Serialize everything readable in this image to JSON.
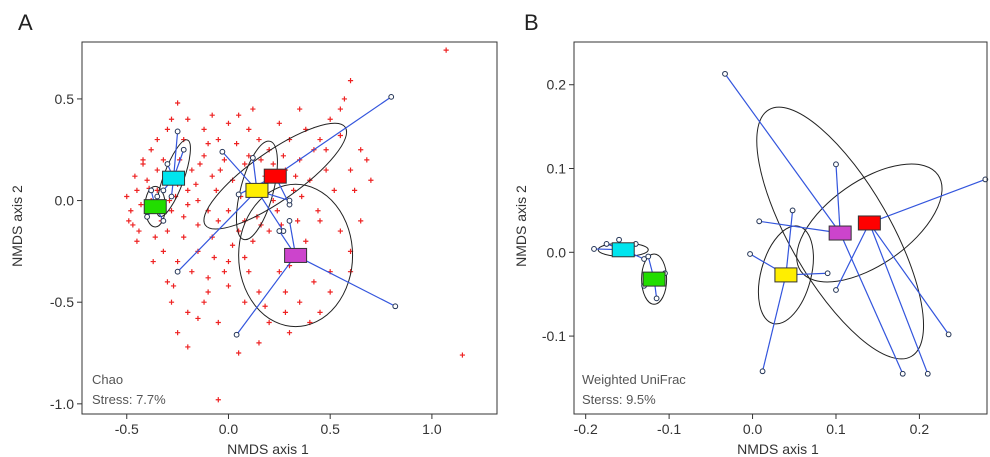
{
  "chart_data": [
    {
      "type": "scatter",
      "panel_label": "A",
      "xlabel": "NMDS axis 1",
      "ylabel": "NMDS axis 2",
      "xlim": [
        -0.72,
        1.32
      ],
      "ylim": [
        -1.05,
        0.78
      ],
      "x_ticks": [
        -0.5,
        0.0,
        0.5,
        1.0
      ],
      "x_tick_labels": [
        "-0.5",
        "0.0",
        "0.5",
        "1.0"
      ],
      "y_ticks": [
        0.5,
        0.0,
        -0.5,
        -1.0
      ],
      "y_tick_labels": [
        "0.5",
        "0.0",
        "-0.5",
        "-1.0"
      ],
      "annotation_lines": [
        "Chao",
        "Stress: 7.7%"
      ],
      "grid": false,
      "background_points": [
        [
          1.07,
          0.74
        ],
        [
          1.15,
          -0.76
        ],
        [
          0.6,
          0.59
        ],
        [
          0.57,
          0.5
        ],
        [
          0.5,
          0.4
        ],
        [
          0.45,
          0.3
        ],
        [
          0.55,
          0.32
        ],
        [
          0.65,
          0.25
        ],
        [
          0.7,
          0.1
        ],
        [
          0.6,
          0.15
        ],
        [
          0.48,
          0.15
        ],
        [
          0.52,
          0.05
        ],
        [
          0.45,
          -0.1
        ],
        [
          0.55,
          -0.15
        ],
        [
          0.6,
          -0.25
        ],
        [
          0.5,
          -0.35
        ],
        [
          0.42,
          -0.4
        ],
        [
          0.35,
          -0.5
        ],
        [
          0.28,
          -0.55
        ],
        [
          0.2,
          -0.6
        ],
        [
          0.15,
          -0.45
        ],
        [
          0.08,
          -0.5
        ],
        [
          -0.05,
          -0.6
        ],
        [
          -0.1,
          -0.45
        ],
        [
          -0.2,
          -0.55
        ],
        [
          -0.28,
          -0.5
        ],
        [
          -0.3,
          -0.4
        ],
        [
          -0.25,
          -0.3
        ],
        [
          -0.15,
          -0.25
        ],
        [
          0.0,
          -0.3
        ],
        [
          0.1,
          -0.35
        ],
        [
          0.25,
          -0.35
        ],
        [
          0.3,
          -0.25
        ],
        [
          0.38,
          -0.2
        ],
        [
          0.2,
          -0.15
        ],
        [
          0.05,
          -0.15
        ],
        [
          -0.05,
          -0.1
        ],
        [
          -0.1,
          -0.05
        ],
        [
          -0.15,
          0.0
        ],
        [
          -0.2,
          0.05
        ],
        [
          -0.25,
          0.08
        ],
        [
          -0.3,
          0.12
        ],
        [
          -0.35,
          0.15
        ],
        [
          -0.4,
          0.1
        ],
        [
          -0.45,
          0.05
        ],
        [
          -0.48,
          -0.05
        ],
        [
          -0.47,
          -0.12
        ],
        [
          -0.44,
          -0.15
        ],
        [
          -0.4,
          -0.08
        ],
        [
          -0.38,
          0.0
        ],
        [
          -0.35,
          0.05
        ],
        [
          -0.33,
          -0.1
        ],
        [
          -0.3,
          -0.15
        ],
        [
          -0.28,
          -0.05
        ],
        [
          -0.26,
          0.02
        ],
        [
          -0.24,
          0.2
        ],
        [
          -0.22,
          0.3
        ],
        [
          -0.2,
          0.4
        ],
        [
          -0.25,
          0.48
        ],
        [
          -0.3,
          0.35
        ],
        [
          -0.35,
          0.3
        ],
        [
          -0.38,
          0.25
        ],
        [
          -0.42,
          0.2
        ],
        [
          -0.18,
          0.15
        ],
        [
          -0.12,
          0.22
        ],
        [
          -0.05,
          0.3
        ],
        [
          0.0,
          0.38
        ],
        [
          0.05,
          0.42
        ],
        [
          0.1,
          0.35
        ],
        [
          0.15,
          0.3
        ],
        [
          0.2,
          0.25
        ],
        [
          0.25,
          0.38
        ],
        [
          0.3,
          0.3
        ],
        [
          0.35,
          0.2
        ],
        [
          0.4,
          0.1
        ],
        [
          0.32,
          0.05
        ],
        [
          0.22,
          0.0
        ],
        [
          0.12,
          0.05
        ],
        [
          0.02,
          0.1
        ],
        [
          -0.08,
          0.12
        ],
        [
          -0.12,
          0.35
        ],
        [
          -0.02,
          0.2
        ],
        [
          0.08,
          0.18
        ],
        [
          0.18,
          0.12
        ],
        [
          0.28,
          0.15
        ],
        [
          0.38,
          0.35
        ],
        [
          0.42,
          0.25
        ],
        [
          0.48,
          0.25
        ],
        [
          -0.15,
          -0.12
        ],
        [
          -0.08,
          -0.18
        ],
        [
          0.02,
          -0.22
        ],
        [
          0.12,
          -0.2
        ],
        [
          -0.22,
          -0.18
        ],
        [
          -0.32,
          -0.25
        ],
        [
          -0.18,
          -0.35
        ],
        [
          -0.1,
          -0.38
        ],
        [
          0.0,
          -0.42
        ],
        [
          -0.25,
          -0.65
        ],
        [
          -0.2,
          -0.72
        ],
        [
          -0.15,
          -0.58
        ],
        [
          0.05,
          -0.75
        ],
        [
          0.15,
          -0.7
        ],
        [
          -0.05,
          -0.98
        ],
        [
          0.3,
          -0.65
        ],
        [
          0.4,
          -0.6
        ],
        [
          0.45,
          -0.55
        ],
        [
          -0.43,
          -0.02
        ],
        [
          -0.46,
          0.12
        ],
        [
          -0.5,
          0.02
        ],
        [
          -0.42,
          0.18
        ],
        [
          -0.36,
          -0.18
        ],
        [
          -0.22,
          -0.08
        ],
        [
          -0.16,
          0.08
        ],
        [
          -0.06,
          0.05
        ],
        [
          0.06,
          0.02
        ],
        [
          0.14,
          -0.08
        ],
        [
          0.24,
          -0.05
        ],
        [
          0.34,
          -0.1
        ],
        [
          0.44,
          -0.05
        ],
        [
          0.62,
          0.05
        ],
        [
          0.68,
          0.2
        ],
        [
          0.55,
          0.45
        ],
        [
          0.35,
          0.45
        ],
        [
          0.12,
          0.45
        ],
        [
          -0.08,
          0.42
        ],
        [
          -0.28,
          0.4
        ],
        [
          -0.32,
          0.2
        ],
        [
          -0.45,
          -0.2
        ],
        [
          -0.49,
          -0.1
        ],
        [
          -0.37,
          -0.3
        ],
        [
          -0.27,
          -0.42
        ],
        [
          -0.12,
          -0.5
        ],
        [
          0.18,
          -0.52
        ],
        [
          0.28,
          -0.45
        ],
        [
          0.5,
          -0.45
        ],
        [
          0.6,
          -0.35
        ],
        [
          0.65,
          -0.1
        ],
        [
          -0.39,
          0.06
        ],
        [
          -0.34,
          -0.02
        ],
        [
          -0.29,
          0.0
        ],
        [
          -0.23,
          0.12
        ],
        [
          -0.2,
          -0.02
        ],
        [
          -0.14,
          0.18
        ],
        [
          -0.1,
          0.28
        ],
        [
          -0.04,
          0.15
        ],
        [
          0.04,
          0.28
        ],
        [
          0.1,
          0.22
        ],
        [
          0.16,
          0.2
        ],
        [
          0.22,
          0.18
        ],
        [
          0.27,
          0.22
        ],
        [
          0.33,
          0.12
        ],
        [
          0.36,
          0.02
        ],
        [
          0.3,
          -0.02
        ],
        [
          0.26,
          -0.12
        ],
        [
          0.16,
          -0.12
        ],
        [
          0.08,
          -0.1
        ],
        [
          0.0,
          -0.05
        ],
        [
          -0.07,
          -0.28
        ],
        [
          -0.02,
          -0.35
        ],
        [
          0.08,
          -0.28
        ],
        [
          0.3,
          -0.32
        ]
      ],
      "groups": [
        {
          "color": "#00e5ee",
          "centroid": [
            -0.27,
            0.11
          ],
          "ellipse": {
            "rx": 0.05,
            "ry": 0.2,
            "angle_deg": 20
          },
          "members": [
            [
              -0.25,
              0.34
            ],
            [
              -0.3,
              0.18
            ],
            [
              -0.22,
              0.25
            ],
            [
              -0.32,
              0.05
            ],
            [
              -0.28,
              0.02
            ]
          ]
        },
        {
          "color": "#22dd00",
          "centroid": [
            -0.36,
            -0.03
          ],
          "ellipse": {
            "rx": 0.05,
            "ry": 0.1,
            "angle_deg": 0
          },
          "members": [
            [
              -0.38,
              0.05
            ],
            [
              -0.4,
              -0.08
            ],
            [
              -0.32,
              -0.1
            ],
            [
              -0.35,
              0.02
            ]
          ]
        },
        {
          "color": "#ff0000",
          "centroid": [
            0.23,
            0.12
          ],
          "ellipse": {
            "rx": 0.12,
            "ry": 0.42,
            "angle_deg": 55
          },
          "members": [
            [
              0.8,
              0.51
            ],
            [
              0.05,
              0.03
            ],
            [
              0.3,
              -0.02
            ]
          ]
        },
        {
          "color": "#ffee00",
          "centroid": [
            0.14,
            0.05
          ],
          "ellipse": {
            "rx": 0.08,
            "ry": 0.25,
            "angle_deg": 15
          },
          "members": [
            [
              0.12,
              0.21
            ],
            [
              -0.03,
              0.24
            ],
            [
              -0.25,
              -0.35
            ],
            [
              0.27,
              -0.15
            ],
            [
              0.3,
              0.0
            ]
          ]
        },
        {
          "color": "#cc44cc",
          "centroid": [
            0.33,
            -0.27
          ],
          "ellipse": {
            "rx": 0.28,
            "ry": 0.35,
            "angle_deg": 0
          },
          "members": [
            [
              0.82,
              -0.52
            ],
            [
              0.04,
              -0.66
            ],
            [
              0.25,
              -0.15
            ],
            [
              0.3,
              -0.1
            ]
          ]
        }
      ]
    },
    {
      "type": "scatter",
      "panel_label": "B",
      "xlabel": "NMDS axis 1",
      "ylabel": "NMDS axis 2",
      "xlim": [
        -0.214,
        0.281
      ],
      "ylim": [
        -0.193,
        0.251
      ],
      "x_ticks": [
        -0.2,
        -0.1,
        0.0,
        0.1,
        0.2
      ],
      "x_tick_labels": [
        "-0.2",
        "-0.1",
        "0.0",
        "0.1",
        "0.2"
      ],
      "y_ticks": [
        0.2,
        0.1,
        0.0,
        -0.1
      ],
      "y_tick_labels": [
        "0.2",
        "0.1",
        "0.0",
        "-0.1"
      ],
      "annotation_lines": [
        "Weighted UniFrac",
        "Sterss: 9.5%"
      ],
      "grid": false,
      "groups": [
        {
          "color": "#00e5ee",
          "centroid": [
            -0.155,
            0.003
          ],
          "ellipse": {
            "rx": 0.03,
            "ry": 0.008,
            "angle_deg": 0
          },
          "members": [
            [
              -0.19,
              0.004
            ],
            [
              -0.175,
              0.01
            ],
            [
              -0.16,
              0.015
            ],
            [
              -0.14,
              0.01
            ],
            [
              -0.13,
              -0.008
            ]
          ]
        },
        {
          "color": "#22dd00",
          "centroid": [
            -0.118,
            -0.032
          ],
          "ellipse": {
            "rx": 0.015,
            "ry": 0.03,
            "angle_deg": 0
          },
          "members": [
            [
              -0.125,
              -0.005
            ],
            [
              -0.105,
              -0.025
            ],
            [
              -0.115,
              -0.055
            ],
            [
              -0.13,
              -0.04
            ]
          ]
        },
        {
          "color": "#ff0000",
          "centroid": [
            0.14,
            0.035
          ],
          "ellipse": {
            "rx": 0.05,
            "ry": 0.1,
            "angle_deg": 55
          },
          "members": [
            [
              0.279,
              0.087
            ],
            [
              0.1,
              -0.045
            ],
            [
              0.21,
              -0.145
            ],
            [
              0.235,
              -0.098
            ]
          ]
        },
        {
          "color": "#ffee00",
          "centroid": [
            0.04,
            -0.027
          ],
          "ellipse": {
            "rx": 0.03,
            "ry": 0.06,
            "angle_deg": 15
          },
          "members": [
            [
              -0.003,
              -0.002
            ],
            [
              0.048,
              0.05
            ],
            [
              0.012,
              -0.142
            ],
            [
              0.09,
              -0.025
            ]
          ]
        },
        {
          "color": "#cc44cc",
          "centroid": [
            0.105,
            0.023
          ],
          "ellipse": {
            "rx": 0.06,
            "ry": 0.17,
            "angle_deg": -30
          },
          "members": [
            [
              -0.033,
              0.213
            ],
            [
              0.1,
              0.105
            ],
            [
              0.008,
              0.037
            ],
            [
              0.18,
              -0.145
            ]
          ]
        }
      ]
    }
  ]
}
